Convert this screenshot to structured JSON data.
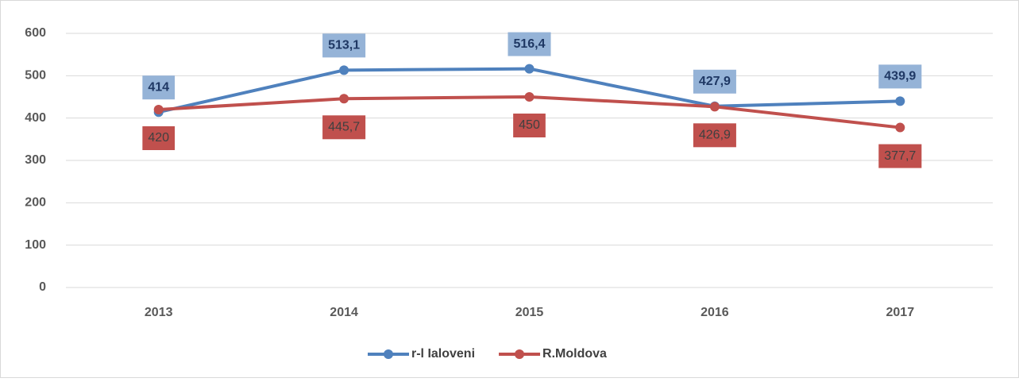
{
  "chart_data": {
    "type": "line",
    "categories": [
      "2013",
      "2014",
      "2015",
      "2016",
      "2017"
    ],
    "series": [
      {
        "name": "r-l Ialoveni",
        "color": "#4f81bd",
        "values": [
          414,
          513.1,
          516.4,
          427.9,
          439.9
        ],
        "value_labels": [
          "414",
          "513,1",
          "516,4",
          "427,9",
          "439,9"
        ],
        "label_color": "#95b3d7"
      },
      {
        "name": "R.Moldova",
        "color": "#c0504d",
        "values": [
          420,
          445.7,
          450,
          426.9,
          377.7
        ],
        "value_labels": [
          "420",
          "445,7",
          "450",
          "426,9",
          "377,7"
        ],
        "label_color": "#c0504d"
      }
    ],
    "ylim": [
      0,
      600
    ],
    "yticks": [
      0,
      100,
      200,
      300,
      400,
      500,
      600
    ],
    "grid": true,
    "legend": "bottom"
  }
}
